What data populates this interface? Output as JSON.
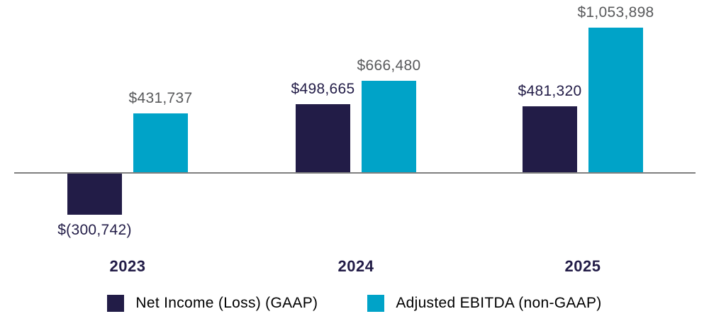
{
  "chart_data": {
    "type": "bar",
    "categories": [
      "2023",
      "2024",
      "2025"
    ],
    "series": [
      {
        "name": "Net Income (Loss) (GAAP)",
        "color": "#221c47",
        "label_color": "#221c47",
        "values": [
          -300742,
          498665,
          481320
        ],
        "labels": [
          "$(300,742)",
          "$498,665",
          "$481,320"
        ]
      },
      {
        "name": "Adjusted EBITDA (non-GAAP)",
        "color": "#00a3c8",
        "label_color": "#58595b",
        "values": [
          431737,
          666480,
          1053898
        ],
        "labels": [
          "$431,737",
          "$666,480",
          "$1,053,898"
        ]
      }
    ],
    "title": "",
    "xlabel": "",
    "ylabel": "",
    "ylim": [
      -300742,
      1053898
    ],
    "grid": false,
    "axis_color": "#7f7f7f",
    "category_label_color": "#221c47",
    "legend_position": "bottom"
  },
  "legend": {
    "items": [
      {
        "label": "Net Income (Loss) (GAAP)",
        "color": "#221c47"
      },
      {
        "label": "Adjusted EBITDA (non-GAAP)",
        "color": "#00a3c8"
      }
    ]
  }
}
